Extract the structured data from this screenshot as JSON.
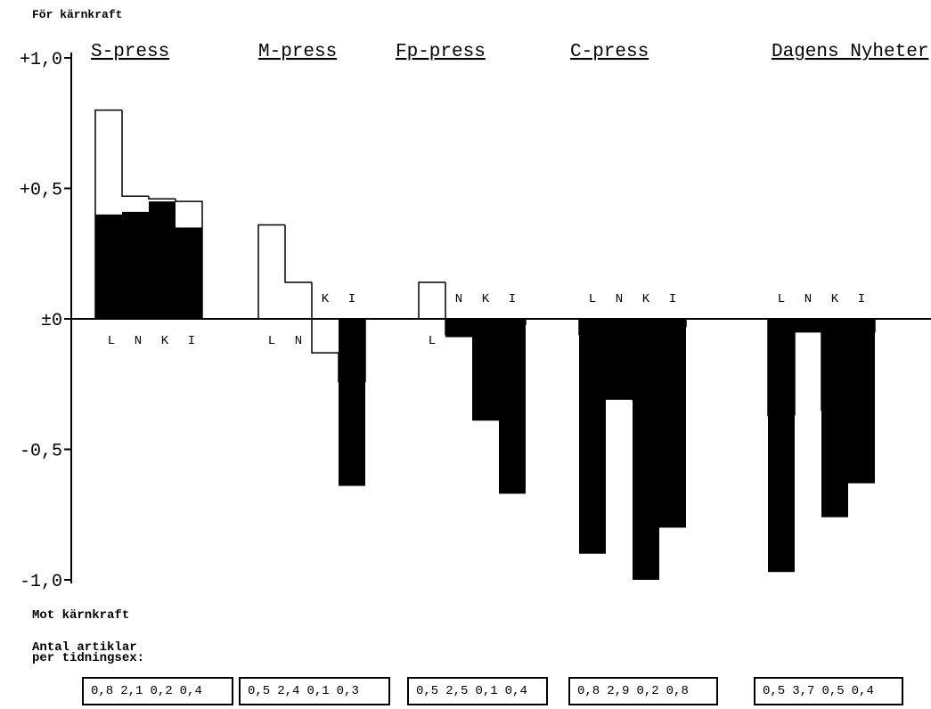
{
  "chart_data": {
    "type": "bar",
    "top_label": "För kärnkraft",
    "bottom_label": "Mot kärnkraft",
    "count_label_line1": "Antal artiklar",
    "count_label_line2": "per tidningsex:",
    "ylim": [
      -1.0,
      1.0
    ],
    "y_ticks": [
      {
        "value": 1.0,
        "label": "+1,0"
      },
      {
        "value": 0.5,
        "label": "+0,5"
      },
      {
        "value": 0.0,
        "label": "±0"
      },
      {
        "value": -0.5,
        "label": "-0,5"
      },
      {
        "value": -1.0,
        "label": "-1,0"
      }
    ],
    "categories": [
      "L",
      "N",
      "K",
      "I"
    ],
    "groups": [
      {
        "name": "S-press",
        "outline": [
          0.8,
          0.47,
          0.46,
          0.45
        ],
        "filled": [
          0.4,
          0.41,
          0.45,
          0.35
        ],
        "category_labels": [
          "L",
          "N",
          "K",
          "I"
        ],
        "counts": [
          "0,8",
          "2,1",
          "0,2",
          "0,4"
        ]
      },
      {
        "name": "M-press",
        "outline": [
          0.36,
          0.14,
          -0.13,
          -0.24
        ],
        "filled": [
          0,
          0,
          0,
          -0.64
        ],
        "category_labels": [
          "L",
          "N",
          "K",
          "I"
        ],
        "counts": [
          "0,5",
          "2,4",
          "0,1",
          "0,3"
        ]
      },
      {
        "name": "Fp-press",
        "outline": [
          0.14,
          -0.06,
          -0.04,
          -0.02
        ],
        "filled": [
          0,
          -0.07,
          -0.39,
          -0.67
        ],
        "category_labels": [
          "L",
          "N",
          "K",
          "I"
        ],
        "counts": [
          "0,5",
          "2,5",
          "0,1",
          "0,4"
        ]
      },
      {
        "name": "C-press",
        "outline": [
          -0.06,
          -0.06,
          -0.31,
          -0.03
        ],
        "filled": [
          -0.9,
          -0.31,
          -1.0,
          -0.8
        ],
        "category_labels": [
          "L",
          "N",
          "K",
          "I"
        ],
        "counts": [
          "0,8",
          "2,9",
          "0,2",
          "0,8"
        ]
      },
      {
        "name": "Dagens Nyheter",
        "outline": [
          -0.37,
          -0.05,
          -0.35,
          -0.05
        ],
        "filled": [
          -0.97,
          -0.05,
          -0.76,
          -0.63
        ],
        "category_labels": [
          "L",
          "N",
          "K",
          "I"
        ],
        "counts": [
          "0,5",
          "3,7",
          "0,5",
          "0,4"
        ]
      }
    ],
    "grid": false,
    "legend": "none"
  }
}
